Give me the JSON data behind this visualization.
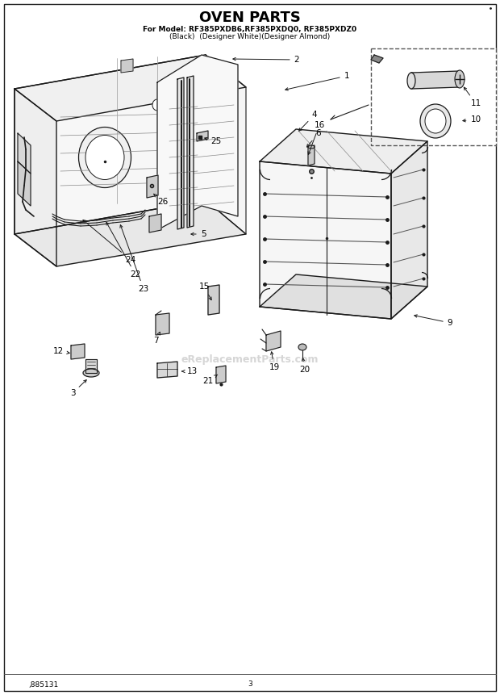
{
  "title": "OVEN PARTS",
  "subtitle_line1": "For Model: RF385PXDB6,RF385PXDQ0, RF385PXDZ0",
  "subtitle_line2": "(Black)  (Designer White)(Designer Almond)",
  "footer_left": ",885131",
  "footer_center": "3",
  "background_color": "#ffffff",
  "line_color": "#1a1a1a",
  "watermark_text": "eReplacementParts.com",
  "title_fontsize": 13,
  "subtitle_fontsize": 6.5,
  "label_fontsize": 7.5,
  "footer_fontsize": 6.5
}
